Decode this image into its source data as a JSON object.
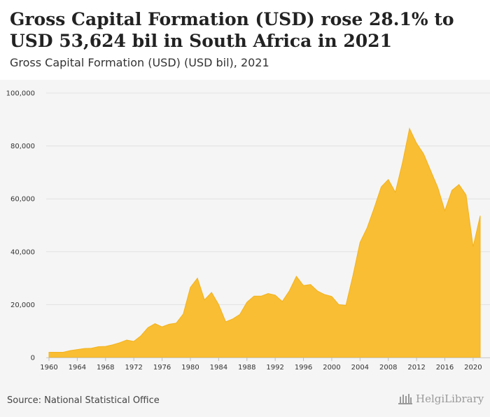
{
  "header": {
    "title": "Gross Capital Formation (USD) rose 28.1% to USD 53,624 bil in South Africa in 2021",
    "subtitle": "Gross Capital Formation (USD) (USD bil), 2021"
  },
  "footer": {
    "source": "Source: National Statistical Office",
    "logo_text": "HelgiLibrary"
  },
  "colors": {
    "fill": "#f9be33",
    "stroke": "#f2b21f",
    "grid": "#e2e2e2",
    "tick": "#333333"
  },
  "chart_data": {
    "type": "area",
    "xlim": [
      1960,
      2021
    ],
    "ylim": [
      0,
      100000
    ],
    "yticks": [
      0,
      20000,
      40000,
      60000,
      80000,
      100000
    ],
    "ytick_labels": [
      "0",
      "20,000",
      "40,000",
      "60,000",
      "80,000",
      "100,000"
    ],
    "xticks": [
      1960,
      1964,
      1968,
      1972,
      1976,
      1980,
      1984,
      1988,
      1992,
      1996,
      2000,
      2004,
      2008,
      2012,
      2016,
      2020
    ],
    "grid": true,
    "x": [
      1960,
      1961,
      1962,
      1963,
      1964,
      1965,
      1966,
      1967,
      1968,
      1969,
      1970,
      1971,
      1972,
      1973,
      1974,
      1975,
      1976,
      1977,
      1978,
      1979,
      1980,
      1981,
      1982,
      1983,
      1984,
      1985,
      1986,
      1987,
      1988,
      1989,
      1990,
      1991,
      1992,
      1993,
      1994,
      1995,
      1996,
      1997,
      1998,
      1999,
      2000,
      2001,
      2002,
      2003,
      2004,
      2005,
      2006,
      2007,
      2008,
      2009,
      2010,
      2011,
      2012,
      2013,
      2014,
      2015,
      2016,
      2017,
      2018,
      2019,
      2020,
      2021
    ],
    "values": [
      2000,
      2000,
      2000,
      2600,
      3000,
      3400,
      3500,
      4100,
      4200,
      4800,
      5600,
      6600,
      6100,
      8200,
      11300,
      12800,
      11600,
      12600,
      13000,
      16500,
      26500,
      30000,
      21800,
      24600,
      20000,
      13500,
      14600,
      16300,
      20900,
      23200,
      23200,
      24200,
      23600,
      21200,
      25200,
      30700,
      27200,
      27600,
      25100,
      23800,
      23100,
      20000,
      19700,
      31000,
      43500,
      49000,
      56500,
      64500,
      67300,
      62500,
      73600,
      86600,
      81000,
      77000,
      70600,
      64300,
      55500,
      63200,
      65400,
      61500,
      41900,
      53624
    ]
  }
}
